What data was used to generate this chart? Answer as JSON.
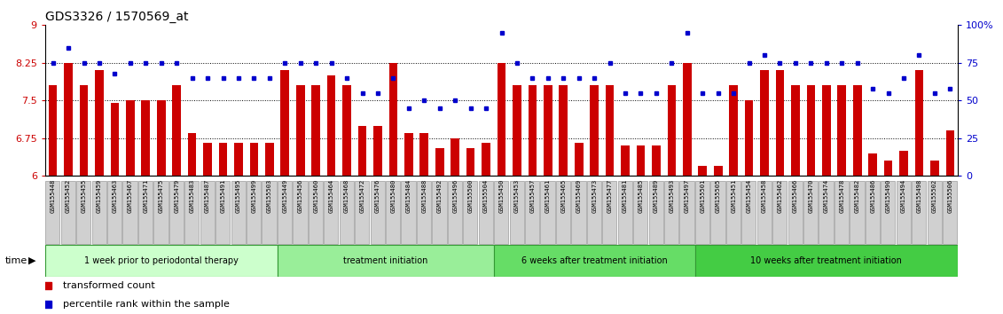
{
  "title": "GDS3326 / 1570569_at",
  "samples": [
    "GSM155448",
    "GSM155452",
    "GSM155455",
    "GSM155459",
    "GSM155463",
    "GSM155467",
    "GSM155471",
    "GSM155475",
    "GSM155479",
    "GSM155483",
    "GSM155487",
    "GSM155491",
    "GSM155495",
    "GSM155499",
    "GSM155503",
    "GSM155449",
    "GSM155456",
    "GSM155460",
    "GSM155464",
    "GSM155468",
    "GSM155472",
    "GSM155476",
    "GSM155480",
    "GSM155484",
    "GSM155488",
    "GSM155492",
    "GSM155496",
    "GSM155500",
    "GSM155504",
    "GSM155450",
    "GSM155453",
    "GSM155457",
    "GSM155461",
    "GSM155465",
    "GSM155469",
    "GSM155473",
    "GSM155477",
    "GSM155481",
    "GSM155485",
    "GSM155489",
    "GSM155493",
    "GSM155497",
    "GSM155501",
    "GSM155505",
    "GSM155451",
    "GSM155454",
    "GSM155458",
    "GSM155462",
    "GSM155466",
    "GSM155470",
    "GSM155474",
    "GSM155478",
    "GSM155482",
    "GSM155486",
    "GSM155490",
    "GSM155494",
    "GSM155498",
    "GSM155502",
    "GSM155506"
  ],
  "bar_values": [
    7.8,
    8.25,
    7.8,
    8.1,
    7.45,
    7.5,
    7.5,
    7.5,
    7.8,
    6.85,
    6.65,
    6.65,
    6.65,
    6.65,
    6.65,
    8.1,
    7.8,
    7.8,
    8.0,
    7.8,
    7.0,
    7.0,
    8.25,
    6.85,
    6.85,
    6.55,
    6.75,
    6.55,
    6.65,
    8.25,
    7.8,
    7.8,
    7.8,
    7.8,
    6.65,
    7.8,
    7.8,
    6.6,
    6.6,
    6.6,
    7.8,
    8.25,
    6.2,
    6.2,
    7.8,
    7.5,
    8.1,
    8.1,
    7.8,
    7.8,
    7.8,
    7.8,
    7.8,
    6.45,
    6.3,
    6.5,
    8.1,
    6.3,
    6.9
  ],
  "percentile_values": [
    75,
    85,
    75,
    75,
    68,
    75,
    75,
    75,
    75,
    65,
    65,
    65,
    65,
    65,
    65,
    75,
    75,
    75,
    75,
    65,
    55,
    55,
    65,
    45,
    50,
    45,
    50,
    45,
    45,
    95,
    75,
    65,
    65,
    65,
    65,
    65,
    75,
    55,
    55,
    55,
    75,
    95,
    55,
    55,
    55,
    75,
    80,
    75,
    75,
    75,
    75,
    75,
    75,
    58,
    55,
    65,
    80,
    55,
    58
  ],
  "groups": [
    {
      "label": "1 week prior to periodontal therapy",
      "start": 0,
      "end": 15,
      "color": "#ccffcc"
    },
    {
      "label": "treatment initiation",
      "start": 15,
      "end": 29,
      "color": "#99ee99"
    },
    {
      "label": "6 weeks after treatment initiation",
      "start": 29,
      "end": 42,
      "color": "#66dd66"
    },
    {
      "label": "10 weeks after treatment initiation",
      "start": 42,
      "end": 59,
      "color": "#44cc44"
    }
  ],
  "y_min": 6,
  "y_max": 9,
  "y_ticks_left": [
    6,
    6.75,
    7.5,
    8.25,
    9
  ],
  "y_ticks_right": [
    0,
    25,
    50,
    75,
    100
  ],
  "bar_color": "#cc0000",
  "dot_color": "#0000cc",
  "bar_bottom": 6.0,
  "background_color": "#ffffff",
  "tick_box_color": "#cccccc",
  "tick_box_edge": "#999999"
}
